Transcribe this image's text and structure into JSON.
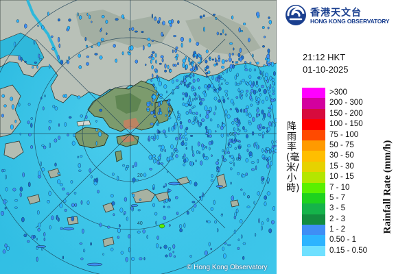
{
  "map": {
    "copyright": "© Hong Kong Observatory",
    "range_ring_labels": [
      "20",
      "40",
      "60"
    ]
  },
  "header": {
    "logo_chinese": "香港天文台",
    "logo_english": "HONG KONG OBSERVATORY"
  },
  "timestamp": {
    "time": "21:12 HKT",
    "date": "01-10-2025"
  },
  "legend": {
    "title_chinese": "降雨率(毫米/小時)",
    "title_english": "Rainfall Rate (mm/h)",
    "items": [
      {
        "label": ">300",
        "color": "#ff00ff"
      },
      {
        "label": "200 - 300",
        "color": "#d3009e"
      },
      {
        "label": "150 - 200",
        "color": "#d70b3d"
      },
      {
        "label": "100 - 150",
        "color": "#ff0000"
      },
      {
        "label": "75 - 100",
        "color": "#ff4a00"
      },
      {
        "label": "50 - 75",
        "color": "#ff9a00"
      },
      {
        "label": "30 - 50",
        "color": "#ffbe00"
      },
      {
        "label": "15 - 30",
        "color": "#e6d200"
      },
      {
        "label": "10 - 15",
        "color": "#b4e600"
      },
      {
        "label": "7 - 10",
        "color": "#5af000"
      },
      {
        "label": "5 - 7",
        "color": "#1ed21e"
      },
      {
        "label": "3 - 5",
        "color": "#15b34a"
      },
      {
        "label": "2 - 3",
        "color": "#138c3f"
      },
      {
        "label": "1 - 2",
        "color": "#3f8ef5"
      },
      {
        "label": "0.50 - 1",
        "color": "#2db4ff"
      },
      {
        "label": "0.15 - 0.50",
        "color": "#6fe0ff"
      }
    ]
  }
}
